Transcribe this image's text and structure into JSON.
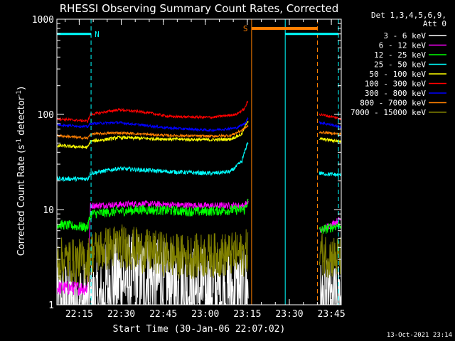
{
  "chart_data": {
    "type": "line",
    "title": "RHESSI Observing Summary Count Rates, Corrected",
    "xlabel": "Start Time (30-Jan-06 22:07:02)",
    "ylabel_main": "Corrected Count Rate (s",
    "ylabel_sup1": "-1",
    "ylabel_mid": " detector",
    "ylabel_sup2": "-1",
    "ylabel_end": ")",
    "yscale": "log",
    "ylim": [
      1,
      1000
    ],
    "yticks": [
      "1",
      "10",
      "100",
      "1000"
    ],
    "xlim_minutes": [
      0,
      101.5
    ],
    "xticks": [
      {
        "label": "22:15",
        "min": 7.97
      },
      {
        "label": "22:30",
        "min": 22.97
      },
      {
        "label": "22:45",
        "min": 37.97
      },
      {
        "label": "23:00",
        "min": 52.97
      },
      {
        "label": "23:15",
        "min": 67.97
      },
      {
        "label": "23:30",
        "min": 82.97
      },
      {
        "label": "23:45",
        "min": 97.97
      }
    ],
    "legend_title": [
      "Det 1,3,4,5,6,9,",
      "Att 0"
    ],
    "legend_position": "right",
    "series": [
      {
        "name": "3 - 6 keV",
        "color": "#ffffff",
        "base": [
          [
            0,
            1
          ],
          [
            16.5,
            1
          ],
          [
            17,
            1.5
          ],
          [
            22,
            1.8
          ],
          [
            26,
            1.9
          ],
          [
            33,
            1.9
          ],
          [
            40,
            1.5
          ],
          [
            50,
            1.4
          ],
          [
            62,
            1.4
          ],
          [
            68,
            1.4
          ],
          [
            94,
            1.0
          ],
          [
            101.5,
            1.0
          ]
        ],
        "noise": 0.5
      },
      {
        "name": "6 - 12 keV",
        "color": "#ff00ff",
        "base": [
          [
            0,
            1.5
          ],
          [
            11,
            1.5
          ],
          [
            12,
            11
          ],
          [
            30,
            11.5
          ],
          [
            50,
            11
          ],
          [
            67,
            11
          ],
          [
            68,
            12
          ],
          [
            94,
            6
          ],
          [
            101.5,
            8
          ]
        ],
        "noise": 0.08
      },
      {
        "name": "12 - 25 keV",
        "color": "#00ff00",
        "base": [
          [
            0,
            7
          ],
          [
            11,
            6.5
          ],
          [
            12,
            9
          ],
          [
            30,
            10
          ],
          [
            50,
            9.5
          ],
          [
            67,
            10
          ],
          [
            68,
            12
          ],
          [
            94,
            6
          ],
          [
            101.5,
            7
          ]
        ],
        "noise": 0.12
      },
      {
        "name": "25 - 50 keV",
        "color": "#00ffff",
        "base": [
          [
            0,
            21
          ],
          [
            11,
            21
          ],
          [
            12,
            24
          ],
          [
            22,
            27
          ],
          [
            40,
            25
          ],
          [
            55,
            24
          ],
          [
            62,
            25
          ],
          [
            66,
            32
          ],
          [
            68,
            50
          ],
          [
            94,
            24
          ],
          [
            101.5,
            23
          ]
        ],
        "noise": 0.05
      },
      {
        "name": "50 - 100 keV",
        "color": "#ffff00",
        "base": [
          [
            0,
            47
          ],
          [
            11,
            45
          ],
          [
            12,
            52
          ],
          [
            22,
            57
          ],
          [
            40,
            55
          ],
          [
            55,
            54
          ],
          [
            62,
            55
          ],
          [
            66,
            62
          ],
          [
            68,
            85
          ],
          [
            94,
            55
          ],
          [
            101.5,
            52
          ]
        ],
        "noise": 0.04
      },
      {
        "name": "100 - 300 keV",
        "color": "#ff0000",
        "base": [
          [
            0,
            90
          ],
          [
            11,
            85
          ],
          [
            12,
            100
          ],
          [
            22,
            112
          ],
          [
            32,
            105
          ],
          [
            40,
            95
          ],
          [
            55,
            93
          ],
          [
            64,
            100
          ],
          [
            67,
            115
          ],
          [
            68,
            135
          ],
          [
            94,
            100
          ],
          [
            101.5,
            90
          ]
        ],
        "noise": 0.03
      },
      {
        "name": "300 - 800 keV",
        "color": "#0000ff",
        "base": [
          [
            0,
            78
          ],
          [
            11,
            74
          ],
          [
            12,
            80
          ],
          [
            22,
            82
          ],
          [
            40,
            72
          ],
          [
            55,
            68
          ],
          [
            64,
            72
          ],
          [
            67,
            80
          ],
          [
            68,
            90
          ],
          [
            94,
            82
          ],
          [
            101.5,
            74
          ]
        ],
        "noise": 0.03
      },
      {
        "name": "800 - 7000 keV",
        "color": "#ff7f00",
        "base": [
          [
            0,
            60
          ],
          [
            11,
            56
          ],
          [
            12,
            62
          ],
          [
            22,
            64
          ],
          [
            40,
            60
          ],
          [
            55,
            59
          ],
          [
            62,
            60
          ],
          [
            66,
            68
          ],
          [
            68,
            75
          ],
          [
            94,
            65
          ],
          [
            101.5,
            62
          ]
        ],
        "noise": 0.03
      },
      {
        "name": "7000 - 15000 keV",
        "color": "#808000",
        "base": [
          [
            0,
            3
          ],
          [
            11,
            2.8
          ],
          [
            12,
            3.5
          ],
          [
            22,
            4.2
          ],
          [
            32,
            3.6
          ],
          [
            45,
            3.2
          ],
          [
            55,
            3.3
          ],
          [
            67,
            3.4
          ],
          [
            68,
            3.8
          ],
          [
            94,
            3.5
          ],
          [
            101.5,
            3
          ]
        ],
        "noise": 0.25
      }
    ],
    "gaps_minutes": [
      [
        68.3,
        93.7
      ]
    ],
    "annotations": {
      "night_label": "N",
      "saa_label": "S",
      "night_color": "#00ffff",
      "saa_color": "#ff7f00",
      "night_bar_y": 700,
      "saa_bar_y": 800,
      "night_bars": [
        [
          0,
          12.2
        ],
        [
          81.5,
          100.5
        ]
      ],
      "saa_bar": [
        69.5,
        93.0
      ],
      "night_solid_lines": [
        0,
        81.5
      ],
      "night_dashed_lines": [
        12.2,
        100.5
      ],
      "saa_solid_lines": [
        69.5
      ],
      "saa_dashed_lines": [
        93.0
      ]
    }
  },
  "footer": {
    "timestamp": "13-Oct-2021 23:14"
  }
}
